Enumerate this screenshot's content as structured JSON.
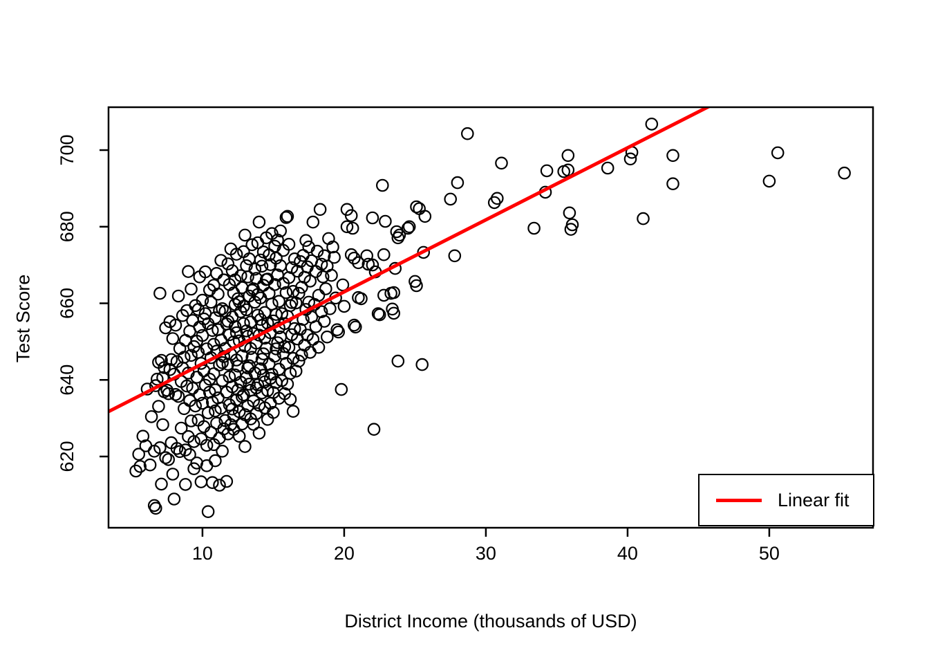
{
  "chart_data": {
    "type": "scatter",
    "title": "",
    "xlabel": "District Income (thousands of USD)",
    "ylabel": "Test Score",
    "xlim": [
      3.37,
      57.32
    ],
    "ylim": [
      601.4,
      711.2
    ],
    "xticks": [
      10,
      20,
      30,
      40,
      50
    ],
    "yticks": [
      620,
      640,
      660,
      680,
      700
    ],
    "grid": false,
    "point_style": {
      "shape": "open-circle",
      "color": "#000000"
    },
    "fit_line": {
      "slope": 1.88,
      "intercept": 625.4,
      "color": "#FF0000"
    },
    "legend": {
      "label": "Linear fit",
      "position": "bottom-right"
    },
    "points": [
      [
        5.3,
        616.2
      ],
      [
        5.5,
        620.6
      ],
      [
        5.6,
        617.4
      ],
      [
        5.8,
        625.3
      ],
      [
        6.0,
        622.8
      ],
      [
        6.1,
        637.6
      ],
      [
        6.3,
        617.8
      ],
      [
        6.4,
        630.4
      ],
      [
        6.6,
        607.2
      ],
      [
        6.6,
        621.4
      ],
      [
        6.7,
        606.5
      ],
      [
        6.7,
        638.5
      ],
      [
        6.8,
        640.2
      ],
      [
        6.9,
        633.1
      ],
      [
        6.9,
        644.6
      ],
      [
        7.0,
        622.3
      ],
      [
        7.0,
        662.6
      ],
      [
        7.1,
        645.1
      ],
      [
        7.1,
        612.8
      ],
      [
        7.2,
        640.6
      ],
      [
        7.2,
        628.3
      ],
      [
        7.3,
        643.2
      ],
      [
        7.3,
        636.9
      ],
      [
        7.4,
        653.6
      ],
      [
        7.4,
        619.7
      ],
      [
        7.5,
        637.3
      ],
      [
        7.6,
        619.2
      ],
      [
        7.6,
        636.4
      ],
      [
        7.7,
        642.7
      ],
      [
        7.7,
        655.2
      ],
      [
        7.8,
        623.6
      ],
      [
        7.8,
        645.3
      ],
      [
        7.9,
        615.4
      ],
      [
        7.9,
        650.8
      ],
      [
        8.0,
        608.9
      ],
      [
        8.0,
        641.5
      ],
      [
        8.1,
        636.2
      ],
      [
        8.1,
        654.3
      ],
      [
        8.2,
        622.1
      ],
      [
        8.2,
        644.8
      ],
      [
        8.3,
        635.7
      ],
      [
        8.3,
        661.9
      ],
      [
        8.4,
        648.2
      ],
      [
        8.4,
        621.3
      ],
      [
        8.5,
        639.6
      ],
      [
        8.5,
        627.4
      ],
      [
        8.6,
        643.1
      ],
      [
        8.6,
        656.8
      ],
      [
        8.7,
        632.5
      ],
      [
        8.7,
        645.9
      ],
      [
        8.8,
        621.7
      ],
      [
        8.8,
        650.3
      ],
      [
        8.9,
        638.4
      ],
      [
        8.9,
        658.1
      ],
      [
        9.0,
        625.2
      ],
      [
        9.0,
        641.8
      ],
      [
        9.1,
        634.6
      ],
      [
        9.1,
        652.7
      ],
      [
        9.2,
        629.3
      ],
      [
        9.2,
        646.4
      ],
      [
        9.3,
        637.8
      ],
      [
        9.3,
        655.5
      ],
      [
        9.4,
        623.9
      ],
      [
        9.4,
        648.7
      ],
      [
        9.5,
        633.2
      ],
      [
        9.5,
        659.4
      ],
      [
        9.0,
        668.3
      ],
      [
        9.2,
        663.7
      ],
      [
        8.8,
        612.7
      ],
      [
        9.4,
        616.8
      ],
      [
        9.1,
        620.5
      ],
      [
        9.6,
        618.3
      ],
      [
        9.6,
        640.7
      ],
      [
        9.7,
        629.5
      ],
      [
        9.7,
        647.2
      ],
      [
        9.8,
        636.1
      ],
      [
        9.8,
        653.8
      ],
      [
        9.9,
        624.6
      ],
      [
        9.9,
        644.3
      ],
      [
        10.0,
        633.9
      ],
      [
        10.0,
        651.6
      ],
      [
        10.1,
        627.8
      ],
      [
        10.1,
        642.4
      ],
      [
        10.2,
        638.6
      ],
      [
        10.2,
        657.3
      ],
      [
        10.3,
        622.9
      ],
      [
        10.3,
        648.1
      ],
      [
        10.4,
        631.4
      ],
      [
        10.4,
        654.7
      ],
      [
        10.5,
        640.2
      ],
      [
        10.5,
        663.5
      ],
      [
        9.8,
        666.9
      ],
      [
        10.2,
        668.2
      ],
      [
        10.4,
        605.6
      ],
      [
        9.9,
        613.4
      ],
      [
        10.3,
        617.6
      ],
      [
        10.0,
        660.8
      ],
      [
        9.7,
        658.4
      ],
      [
        10.1,
        655.9
      ],
      [
        9.6,
        650.1
      ],
      [
        10.5,
        636.8
      ],
      [
        10.6,
        626.3
      ],
      [
        10.6,
        645.8
      ],
      [
        10.7,
        634.2
      ],
      [
        10.7,
        652.9
      ],
      [
        10.8,
        623.1
      ],
      [
        10.8,
        641.6
      ],
      [
        10.9,
        637.4
      ],
      [
        10.9,
        656.2
      ],
      [
        11.0,
        628.7
      ],
      [
        11.0,
        647.5
      ],
      [
        11.1,
        635.3
      ],
      [
        11.1,
        653.1
      ],
      [
        11.2,
        624.8
      ],
      [
        11.2,
        643.9
      ],
      [
        11.3,
        632.6
      ],
      [
        11.3,
        650.4
      ],
      [
        11.4,
        639.8
      ],
      [
        11.4,
        658.6
      ],
      [
        11.5,
        627.2
      ],
      [
        11.5,
        646.1
      ],
      [
        10.7,
        613.2
      ],
      [
        11.2,
        612.5
      ],
      [
        10.9,
        618.9
      ],
      [
        11.4,
        621.4
      ],
      [
        10.6,
        660.3
      ],
      [
        10.8,
        664.7
      ],
      [
        11.0,
        667.8
      ],
      [
        11.3,
        671.2
      ],
      [
        11.1,
        662.4
      ],
      [
        11.5,
        666.1
      ],
      [
        10.9,
        631.9
      ],
      [
        11.2,
        658.1
      ],
      [
        10.8,
        649.3
      ],
      [
        11.4,
        644.5
      ],
      [
        11.6,
        629.4
      ],
      [
        11.6,
        648.2
      ],
      [
        11.7,
        636.8
      ],
      [
        11.7,
        654.6
      ],
      [
        11.8,
        625.9
      ],
      [
        11.8,
        644.1
      ],
      [
        11.9,
        633.5
      ],
      [
        11.9,
        651.8
      ],
      [
        12.0,
        628.3
      ],
      [
        12.0,
        646.7
      ],
      [
        12.1,
        638.2
      ],
      [
        12.1,
        656.4
      ],
      [
        12.2,
        630.6
      ],
      [
        12.2,
        649.9
      ],
      [
        12.3,
        641.3
      ],
      [
        12.3,
        659.7
      ],
      [
        12.4,
        634.8
      ],
      [
        12.4,
        652.3
      ],
      [
        12.5,
        643.6
      ],
      [
        12.5,
        661.2
      ],
      [
        11.7,
        613.5
      ],
      [
        12.2,
        627.1
      ],
      [
        11.9,
        664.9
      ],
      [
        12.1,
        668.5
      ],
      [
        12.4,
        672.8
      ],
      [
        11.8,
        670.3
      ],
      [
        12.3,
        666.1
      ],
      [
        12.0,
        674.2
      ],
      [
        11.6,
        657.9
      ],
      [
        12.5,
        637.4
      ],
      [
        11.8,
        655.3
      ],
      [
        12.2,
        662.7
      ],
      [
        12.4,
        645.2
      ],
      [
        11.9,
        640.8
      ],
      [
        12.1,
        632.4
      ],
      [
        12.3,
        653.9
      ],
      [
        12.6,
        631.7
      ],
      [
        12.6,
        650.2
      ],
      [
        12.7,
        639.4
      ],
      [
        12.7,
        657.8
      ],
      [
        12.8,
        628.5
      ],
      [
        12.8,
        646.3
      ],
      [
        12.9,
        636.1
      ],
      [
        12.9,
        654.7
      ],
      [
        13.0,
        630.9
      ],
      [
        13.0,
        648.8
      ],
      [
        13.1,
        640.6
      ],
      [
        13.1,
        658.3
      ],
      [
        13.2,
        633.2
      ],
      [
        13.2,
        651.4
      ],
      [
        13.3,
        643.7
      ],
      [
        13.3,
        661.9
      ],
      [
        13.4,
        637.3
      ],
      [
        13.4,
        655.1
      ],
      [
        13.5,
        645.9
      ],
      [
        13.5,
        663.4
      ],
      [
        12.7,
        667.2
      ],
      [
        13.1,
        669.8
      ],
      [
        12.9,
        673.5
      ],
      [
        13.3,
        671.6
      ],
      [
        13.5,
        675.3
      ],
      [
        12.8,
        664.1
      ],
      [
        13.2,
        666.9
      ],
      [
        13.0,
        677.8
      ],
      [
        12.6,
        660.4
      ],
      [
        13.4,
        648.2
      ],
      [
        12.8,
        635.6
      ],
      [
        13.2,
        643.1
      ],
      [
        13.4,
        629.8
      ],
      [
        12.6,
        625.3
      ],
      [
        13.0,
        622.6
      ],
      [
        13.1,
        652.8
      ],
      [
        12.9,
        659.2
      ],
      [
        13.3,
        638.9
      ],
      [
        13.6,
        634.5
      ],
      [
        13.6,
        652.1
      ],
      [
        13.7,
        641.8
      ],
      [
        13.7,
        660.3
      ],
      [
        13.8,
        631.2
      ],
      [
        13.8,
        649.6
      ],
      [
        13.9,
        638.7
      ],
      [
        13.9,
        656.9
      ],
      [
        14.0,
        633.4
      ],
      [
        14.0,
        651.7
      ],
      [
        14.1,
        642.9
      ],
      [
        14.1,
        661.4
      ],
      [
        14.2,
        636.6
      ],
      [
        14.2,
        654.2
      ],
      [
        14.3,
        646.8
      ],
      [
        14.3,
        664.7
      ],
      [
        14.4,
        639.5
      ],
      [
        14.4,
        657.6
      ],
      [
        14.5,
        648.3
      ],
      [
        14.5,
        666.2
      ],
      [
        13.7,
        668.9
      ],
      [
        14.1,
        671.3
      ],
      [
        13.9,
        675.8
      ],
      [
        14.3,
        673.4
      ],
      [
        14.5,
        677.1
      ],
      [
        13.8,
        666.5
      ],
      [
        14.2,
        669.7
      ],
      [
        14.0,
        681.2
      ],
      [
        13.6,
        663.8
      ],
      [
        14.4,
        650.9
      ],
      [
        13.8,
        637.9
      ],
      [
        14.2,
        645.4
      ],
      [
        14.4,
        632.7
      ],
      [
        13.6,
        628.4
      ],
      [
        14.0,
        626.1
      ],
      [
        14.1,
        655.8
      ],
      [
        13.9,
        662.3
      ],
      [
        14.3,
        641.2
      ],
      [
        14.6,
        637.2
      ],
      [
        14.6,
        654.8
      ],
      [
        14.7,
        644.1
      ],
      [
        14.7,
        662.6
      ],
      [
        14.8,
        633.9
      ],
      [
        14.8,
        652.3
      ],
      [
        14.9,
        641.5
      ],
      [
        14.9,
        659.8
      ],
      [
        15.0,
        636.7
      ],
      [
        15.0,
        655.4
      ],
      [
        15.1,
        646.2
      ],
      [
        15.1,
        664.9
      ],
      [
        15.2,
        639.3
      ],
      [
        15.2,
        657.1
      ],
      [
        15.3,
        649.7
      ],
      [
        15.3,
        667.4
      ],
      [
        15.4,
        642.8
      ],
      [
        15.4,
        660.5
      ],
      [
        15.5,
        651.2
      ],
      [
        15.5,
        669.8
      ],
      [
        14.7,
        672.6
      ],
      [
        15.1,
        674.9
      ],
      [
        14.9,
        678.2
      ],
      [
        15.3,
        676.5
      ],
      [
        15.5,
        678.9
      ],
      [
        14.8,
        670.1
      ],
      [
        15.2,
        671.8
      ],
      [
        14.6,
        666.3
      ],
      [
        15.4,
        653.6
      ],
      [
        14.8,
        640.4
      ],
      [
        15.2,
        648.1
      ],
      [
        15.4,
        635.2
      ],
      [
        14.6,
        629.7
      ],
      [
        15.0,
        631.5
      ],
      [
        15.6,
        639.8
      ],
      [
        15.6,
        657.3
      ],
      [
        15.7,
        646.9
      ],
      [
        15.7,
        665.2
      ],
      [
        15.8,
        636.4
      ],
      [
        15.8,
        654.7
      ],
      [
        15.9,
        644.3
      ],
      [
        15.9,
        662.8
      ],
      [
        16.0,
        638.9
      ],
      [
        16.0,
        656.6
      ],
      [
        16.1,
        648.5
      ],
      [
        16.1,
        666.7
      ],
      [
        16.2,
        641.7
      ],
      [
        16.2,
        659.4
      ],
      [
        16.3,
        651.8
      ],
      [
        16.3,
        669.3
      ],
      [
        16.4,
        645.6
      ],
      [
        16.4,
        663.1
      ],
      [
        16.5,
        653.4
      ],
      [
        16.5,
        671.6
      ],
      [
        15.7,
        673.8
      ],
      [
        16.1,
        675.4
      ],
      [
        15.9,
        682.4
      ],
      [
        16.0,
        682.7
      ],
      [
        16.3,
        660.2
      ],
      [
        15.8,
        648.7
      ],
      [
        16.2,
        634.9
      ],
      [
        16.4,
        631.8
      ],
      [
        16.6,
        642.3
      ],
      [
        16.6,
        660.1
      ],
      [
        16.7,
        650.7
      ],
      [
        16.7,
        668.4
      ],
      [
        16.8,
        644.9
      ],
      [
        16.8,
        662.6
      ],
      [
        16.9,
        653.2
      ],
      [
        16.9,
        670.9
      ],
      [
        17.0,
        646.5
      ],
      [
        17.0,
        664.2
      ],
      [
        17.1,
        655.8
      ],
      [
        17.1,
        672.5
      ],
      [
        17.2,
        649.1
      ],
      [
        17.2,
        666.8
      ],
      [
        17.3,
        658.4
      ],
      [
        17.3,
        676.4
      ],
      [
        17.4,
        651.7
      ],
      [
        17.4,
        669.5
      ],
      [
        17.5,
        660.3
      ],
      [
        17.5,
        674.7
      ],
      [
        17.6,
        647.2
      ],
      [
        17.6,
        665.8
      ],
      [
        17.7,
        656.4
      ],
      [
        17.7,
        671.1
      ],
      [
        17.8,
        650.6
      ],
      [
        17.8,
        681.2
      ],
      [
        17.9,
        659.7
      ],
      [
        18.0,
        668.3
      ],
      [
        18.0,
        653.9
      ],
      [
        18.1,
        673.6
      ],
      [
        18.2,
        662.1
      ],
      [
        18.2,
        648.5
      ],
      [
        18.3,
        684.5
      ],
      [
        18.4,
        670.2
      ],
      [
        18.4,
        657.8
      ],
      [
        18.5,
        666.9
      ],
      [
        18.6,
        655.3
      ],
      [
        18.6,
        672.4
      ],
      [
        18.7,
        663.8
      ],
      [
        18.8,
        651.2
      ],
      [
        18.8,
        669.7
      ],
      [
        18.9,
        676.9
      ],
      [
        19.0,
        658.6
      ],
      [
        19.1,
        667.3
      ],
      [
        19.2,
        674.7
      ],
      [
        19.3,
        672.0
      ],
      [
        19.4,
        661.4
      ],
      [
        19.5,
        653.1
      ],
      [
        19.6,
        652.5
      ],
      [
        19.8,
        637.5
      ],
      [
        19.9,
        664.8
      ],
      [
        20.0,
        659.2
      ],
      [
        20.2,
        684.5
      ],
      [
        20.2,
        680.0
      ],
      [
        20.5,
        682.9
      ],
      [
        20.6,
        679.6
      ],
      [
        20.5,
        672.7
      ],
      [
        20.7,
        671.8
      ],
      [
        20.8,
        653.8
      ],
      [
        20.7,
        654.3
      ],
      [
        21.0,
        670.6
      ],
      [
        21.0,
        661.5
      ],
      [
        21.2,
        661.2
      ],
      [
        21.6,
        672.4
      ],
      [
        21.7,
        670.2
      ],
      [
        22.0,
        682.3
      ],
      [
        22.0,
        670.0
      ],
      [
        22.1,
        627.1
      ],
      [
        22.2,
        668.2
      ],
      [
        22.4,
        657.3
      ],
      [
        22.5,
        657.0
      ],
      [
        22.7,
        690.8
      ],
      [
        22.8,
        672.7
      ],
      [
        22.8,
        662.1
      ],
      [
        22.9,
        681.4
      ],
      [
        23.3,
        662.6
      ],
      [
        23.4,
        658.5
      ],
      [
        23.5,
        657.4
      ],
      [
        23.5,
        662.8
      ],
      [
        23.6,
        669.1
      ],
      [
        23.7,
        678.7
      ],
      [
        23.8,
        677.1
      ],
      [
        23.8,
        644.9
      ],
      [
        23.9,
        677.8
      ],
      [
        24.5,
        679.6
      ],
      [
        24.6,
        680.0
      ],
      [
        25.0,
        665.7
      ],
      [
        25.1,
        664.6
      ],
      [
        25.1,
        685.2
      ],
      [
        25.3,
        684.7
      ],
      [
        25.5,
        644.0
      ],
      [
        25.6,
        673.3
      ],
      [
        25.7,
        682.7
      ],
      [
        27.5,
        687.2
      ],
      [
        27.8,
        672.4
      ],
      [
        28.0,
        691.5
      ],
      [
        28.7,
        704.3
      ],
      [
        30.6,
        686.3
      ],
      [
        30.8,
        687.4
      ],
      [
        31.1,
        696.6
      ],
      [
        33.4,
        679.6
      ],
      [
        34.2,
        689.0
      ],
      [
        34.3,
        694.6
      ],
      [
        35.5,
        694.4
      ],
      [
        35.8,
        694.8
      ],
      [
        35.8,
        698.6
      ],
      [
        35.9,
        683.6
      ],
      [
        36.1,
        680.5
      ],
      [
        36.0,
        679.3
      ],
      [
        38.6,
        695.3
      ],
      [
        40.2,
        697.7
      ],
      [
        40.3,
        699.4
      ],
      [
        41.1,
        682.1
      ],
      [
        41.7,
        706.8
      ],
      [
        43.2,
        698.6
      ],
      [
        43.2,
        691.2
      ],
      [
        50.0,
        691.9
      ],
      [
        50.6,
        699.3
      ],
      [
        55.3,
        694.0
      ]
    ]
  }
}
